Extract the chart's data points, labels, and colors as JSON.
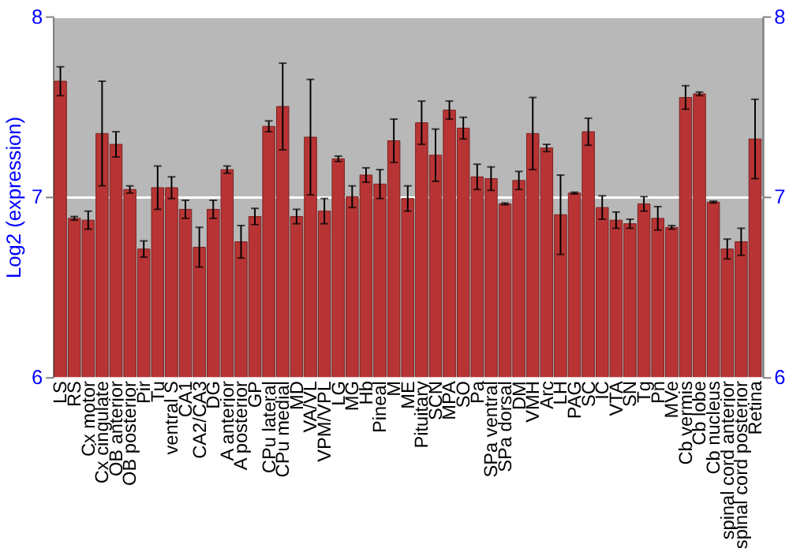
{
  "chart_data": {
    "type": "bar",
    "ylabel": "Log2 (expression)",
    "categories": [
      "LS",
      "RS",
      "Cx motor",
      "Cx cingulate",
      "OB anterior",
      "OB posterior",
      "Pir",
      "Tu",
      "ventral S",
      "CA1",
      "CA2/CA3",
      "DG",
      "A anterior",
      "A posterior",
      "GP",
      "CPu lateral",
      "CPu medial",
      "MD",
      "VA/VL",
      "VPM/VPL",
      "LG",
      "MG",
      "Hb",
      "Pineal",
      "M",
      "ME",
      "Pituitary",
      "SCN",
      "MPA",
      "SO",
      "Pa",
      "SPa ventral",
      "SPa dorsal",
      "DM",
      "VMH",
      "Arc",
      "LH",
      "PAG",
      "SC",
      "IC",
      "VTA",
      "SN",
      "Tg",
      "Pn",
      "MVe",
      "Cb vermis",
      "Cb lobe",
      "Cb nucleus",
      "spinal cord anterior",
      "spinal cord posterior",
      "Retina"
    ],
    "values": [
      7.64,
      6.88,
      6.87,
      7.35,
      7.29,
      7.04,
      6.71,
      7.05,
      7.05,
      6.93,
      6.72,
      6.93,
      7.15,
      6.75,
      6.89,
      7.39,
      7.5,
      6.89,
      7.33,
      6.92,
      7.21,
      7.0,
      7.12,
      7.07,
      7.31,
      6.99,
      7.41,
      7.23,
      7.48,
      7.38,
      7.11,
      7.1,
      6.96,
      7.09,
      7.35,
      7.27,
      6.9,
      7.02,
      7.36,
      6.94,
      6.87,
      6.85,
      6.96,
      6.88,
      6.83,
      7.55,
      7.57,
      6.97,
      6.71,
      6.75,
      7.32
    ],
    "errors": [
      0.08,
      0.01,
      0.05,
      0.29,
      0.07,
      0.02,
      0.045,
      0.12,
      0.06,
      0.05,
      0.11,
      0.05,
      0.02,
      0.09,
      0.045,
      0.03,
      0.24,
      0.04,
      0.32,
      0.07,
      0.015,
      0.06,
      0.04,
      0.08,
      0.12,
      0.07,
      0.12,
      0.145,
      0.05,
      0.06,
      0.07,
      0.065,
      0.005,
      0.05,
      0.2,
      0.02,
      0.22,
      0.005,
      0.075,
      0.065,
      0.045,
      0.025,
      0.04,
      0.065,
      0.01,
      0.065,
      0.01,
      0.005,
      0.055,
      0.075,
      0.22
    ],
    "color": "#b83434",
    "ylim": [
      6,
      8
    ],
    "yticks": [
      6,
      7,
      8
    ],
    "y2lim": [
      6,
      8
    ],
    "y2ticks": [
      6,
      7,
      8
    ],
    "grid": "y",
    "legend": false
  }
}
